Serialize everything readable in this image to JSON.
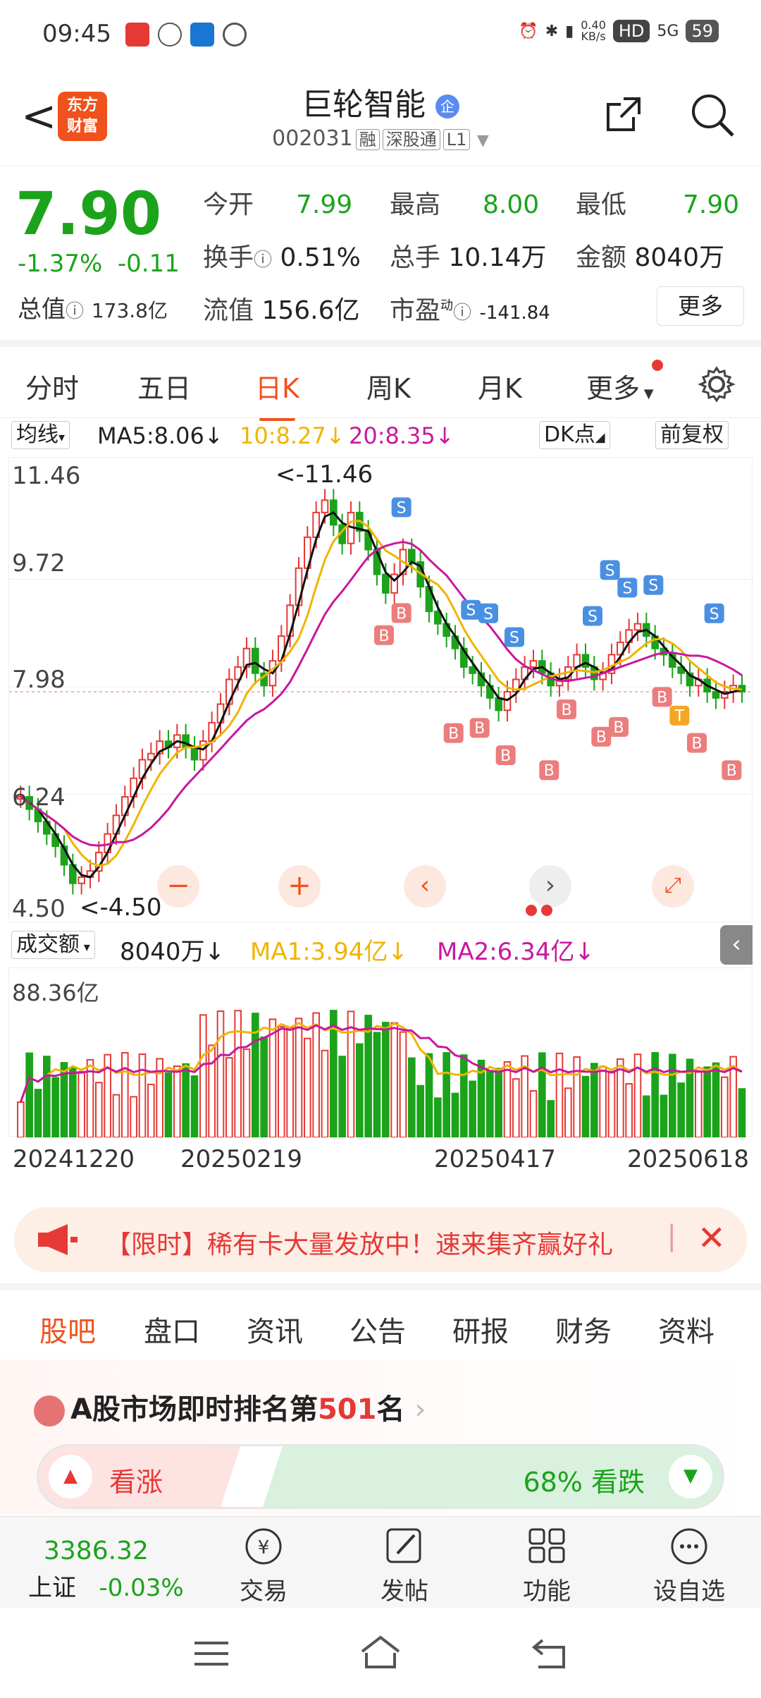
{
  "status_bar": {
    "time": "09:45",
    "net_speed_top": "0.40",
    "net_speed_bottom": "KB/s",
    "hd": "HD",
    "signal": "5G",
    "battery": "59"
  },
  "header": {
    "back": "<",
    "logo_line1": "东方",
    "logo_line2": "财富",
    "stock_name": "巨轮智能",
    "name_badge": "企",
    "stock_code": "002031",
    "tags": [
      "融",
      "深股通",
      "L1"
    ]
  },
  "quote": {
    "price": "7.90",
    "change_pct": "-1.37%",
    "change_abs": "-0.11",
    "market_cap_label": "总值",
    "market_cap": "173.8亿",
    "fields": [
      {
        "label": "今开",
        "value": "7.99"
      },
      {
        "label": "最高",
        "value": "8.00"
      },
      {
        "label": "最低",
        "value": "7.90"
      },
      {
        "label": "换手",
        "value": "0.51%"
      },
      {
        "label": "总手",
        "value": "10.14万"
      },
      {
        "label": "金额",
        "value": "8040万"
      },
      {
        "label": "流值",
        "value": "156.6亿"
      },
      {
        "label": "市盈",
        "sup": "动",
        "value": "-141.84"
      }
    ],
    "more_label": "更多"
  },
  "chart_tabs": [
    "分时",
    "五日",
    "日K",
    "周K",
    "月K",
    "更多"
  ],
  "ma_row": {
    "selector": "均线",
    "ma5": "MA5:8.06",
    "ma10": "10:8.27",
    "ma20": "20:8.35",
    "dk": "DK点",
    "adjust": "前复权"
  },
  "colors": {
    "up": "#e53935",
    "down": "#1ba31b",
    "ma5": "#111111",
    "ma10": "#f0b400",
    "ma20": "#c8189e",
    "accent": "#f0521d"
  },
  "chart_data": [
    {
      "type": "candlestick",
      "y_ticks": [
        "11.46",
        "9.72",
        "7.98",
        "6.24",
        "4.50"
      ],
      "ylim": [
        4.5,
        11.46
      ],
      "high_label": "<-11.46",
      "low_label": "<-4.50",
      "x_ticks": [
        "20241220",
        "20250219",
        "20250417",
        "20250618"
      ],
      "close_series": [
        6.2,
        6.0,
        5.8,
        5.6,
        5.4,
        5.1,
        4.8,
        4.9,
        5.0,
        5.3,
        5.6,
        5.9,
        6.2,
        6.5,
        6.8,
        6.9,
        7.1,
        7.0,
        7.2,
        7.0,
        6.8,
        7.1,
        7.4,
        7.7,
        8.1,
        8.3,
        8.6,
        8.2,
        8.0,
        8.4,
        8.8,
        9.3,
        9.9,
        10.4,
        10.8,
        11.0,
        10.6,
        10.3,
        10.8,
        10.5,
        10.2,
        9.8,
        9.5,
        9.8,
        10.2,
        10.0,
        9.6,
        9.2,
        9.0,
        8.8,
        8.6,
        8.3,
        8.2,
        8.0,
        7.8,
        7.6,
        7.9,
        8.1,
        8.3,
        8.4,
        8.2,
        8.0,
        8.1,
        8.3,
        8.5,
        8.3,
        8.1,
        8.2,
        8.5,
        8.7,
        8.9,
        9.0,
        8.8,
        8.6,
        8.5,
        8.3,
        8.2,
        8.0,
        8.1,
        7.9,
        7.8,
        7.9,
        8.0,
        7.9
      ],
      "ma5": "MA5:8.06",
      "ma10": "10:8.27",
      "ma20": "20:8.35"
    },
    {
      "type": "bar",
      "name": "成交额",
      "y_top_label": "88.36亿",
      "current": "8040万",
      "ma1": "MA1:3.94亿",
      "ma2": "MA2:6.34亿"
    }
  ],
  "trade_markers": {
    "buy": "B",
    "sell": "S",
    "t": "T"
  },
  "banner": {
    "text": "【限时】稀有卡大量发放中！速来集齐赢好礼",
    "close": "✕"
  },
  "bottom_tabs": [
    "股吧",
    "盘口",
    "资讯",
    "公告",
    "研报",
    "财务",
    "资料"
  ],
  "rank": {
    "prefix": "A股市场即时排名第",
    "rank": "501",
    "suffix": "名",
    "bull_label": "看涨",
    "bear_label": "68% 看跌"
  },
  "footer": {
    "index_value": "3386.32",
    "index_name": "上证",
    "index_change": "-0.03%",
    "items": [
      "交易",
      "发帖",
      "功能",
      "设自选"
    ]
  }
}
